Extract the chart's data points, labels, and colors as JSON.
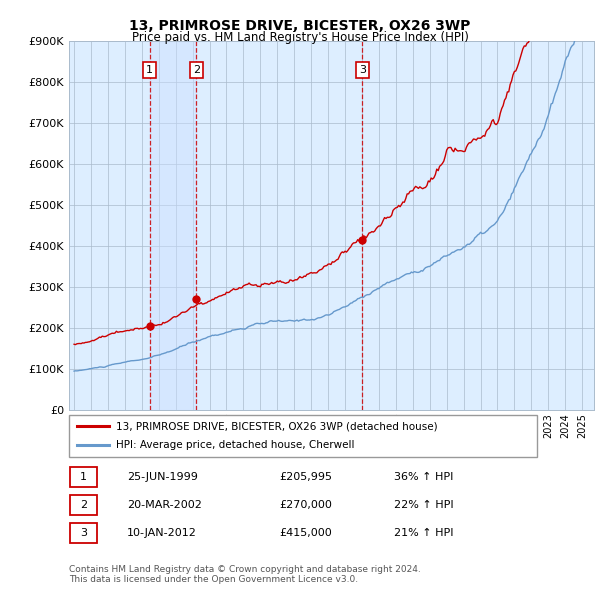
{
  "title": "13, PRIMROSE DRIVE, BICESTER, OX26 3WP",
  "subtitle": "Price paid vs. HM Land Registry's House Price Index (HPI)",
  "ylim": [
    0,
    900000
  ],
  "yticks": [
    0,
    100000,
    200000,
    300000,
    400000,
    500000,
    600000,
    700000,
    800000,
    900000
  ],
  "ytick_labels": [
    "£0",
    "£100K",
    "£200K",
    "£300K",
    "£400K",
    "£500K",
    "£600K",
    "£700K",
    "£800K",
    "£900K"
  ],
  "red_line_color": "#cc0000",
  "blue_line_color": "#6699cc",
  "bg_color": "#ddeeff",
  "grid_color": "#aabbcc",
  "shade_color": "#cce0ff",
  "dashed_line_color": "#cc0000",
  "sale_points": [
    {
      "year": 1999.47,
      "price": 205995,
      "label": "1"
    },
    {
      "year": 2002.22,
      "price": 270000,
      "label": "2"
    },
    {
      "year": 2012.03,
      "price": 415000,
      "label": "3"
    }
  ],
  "legend_entries": [
    {
      "label": "13, PRIMROSE DRIVE, BICESTER, OX26 3WP (detached house)",
      "color": "#cc0000"
    },
    {
      "label": "HPI: Average price, detached house, Cherwell",
      "color": "#6699cc"
    }
  ],
  "table_rows": [
    {
      "num": "1",
      "date": "25-JUN-1999",
      "price": "£205,995",
      "pct": "36% ↑ HPI"
    },
    {
      "num": "2",
      "date": "20-MAR-2002",
      "price": "£270,000",
      "pct": "22% ↑ HPI"
    },
    {
      "num": "3",
      "date": "10-JAN-2012",
      "price": "£415,000",
      "pct": "21% ↑ HPI"
    }
  ],
  "footnote": "Contains HM Land Registry data © Crown copyright and database right 2024.\nThis data is licensed under the Open Government Licence v3.0.",
  "x_start_year": 1995,
  "x_end_year": 2025
}
